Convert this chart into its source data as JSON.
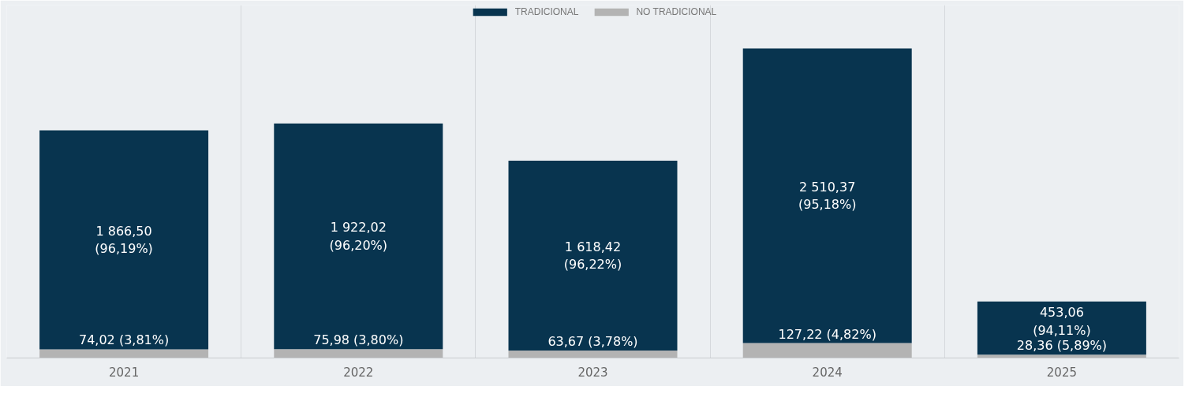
{
  "chart_data": {
    "type": "bar",
    "stacked": true,
    "categories": [
      "2021",
      "2022",
      "2023",
      "2024",
      "2025"
    ],
    "series": [
      {
        "name": "NO TRADICIONAL",
        "color": "#b3b3b3",
        "values": [
          74.02,
          75.98,
          63.67,
          127.22,
          28.36
        ],
        "value_labels": [
          "74,02 (3,81%)",
          "75,98 (3,80%)",
          "63,67 (3,78%)",
          "127,22 (4,82%)",
          "28,36 (5,89%)"
        ]
      },
      {
        "name": "TRADICIONAL",
        "color": "#08344f",
        "values": [
          1866.5,
          1922.02,
          1618.42,
          2510.37,
          453.06
        ],
        "value_labels": [
          "1 866,50\n(96,19%)",
          "1 922,02\n(96,20%)",
          "1 618,42\n(96,22%)",
          "2 510,37\n(95,18%)",
          "453,06\n(94,11%)"
        ]
      }
    ],
    "grid": "x",
    "legend": "top"
  }
}
